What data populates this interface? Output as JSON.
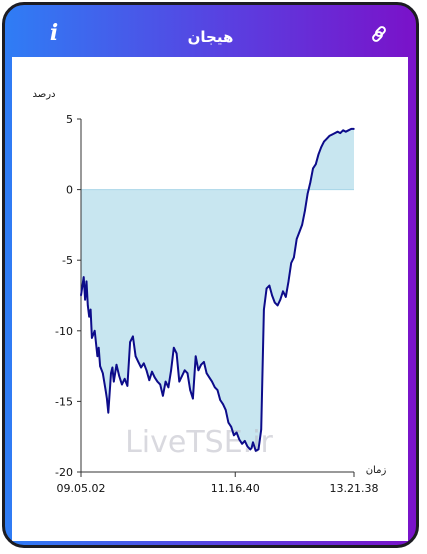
{
  "header": {
    "title": "هیجان",
    "info_icon": "i",
    "link_icon": "link-icon"
  },
  "colors": {
    "frame_gradient_start": "#2f7df5",
    "frame_gradient_end": "#7a12c9",
    "line": "#0d0c8a",
    "fill": "#c8e6f0",
    "zero_line": "#a9d6e8"
  },
  "watermark": "LiveTSE.ir",
  "chart_data": {
    "type": "area",
    "ylabel": "درصد",
    "xlabel": "زمان",
    "ylim": [
      -20,
      5
    ],
    "yticks": [
      5,
      0,
      -5,
      -10,
      -15,
      -20
    ],
    "xticks": [
      "09.05.02",
      "11.16.40",
      "13.21.38"
    ],
    "x_index_range": [
      0,
      100
    ],
    "xtick_positions": [
      0,
      56.5,
      100
    ],
    "grid": false,
    "series": [
      {
        "x": [
          0,
          1,
          1.5,
          2,
          2.5,
          3,
          3.5,
          4,
          5,
          6,
          6.5,
          7,
          8,
          9,
          9.5,
          10,
          11,
          11.5,
          12,
          13,
          14,
          15,
          16,
          17,
          18,
          19,
          20,
          21,
          22,
          23,
          24,
          25,
          26,
          27,
          28,
          29,
          30,
          31,
          32,
          33,
          34,
          35,
          36,
          37,
          38,
          39,
          40,
          41,
          42,
          43,
          44,
          45,
          46,
          47,
          48,
          49,
          50,
          51,
          52,
          53,
          54,
          55,
          56,
          57,
          58,
          59,
          60,
          61,
          62,
          62.5,
          63,
          64,
          65,
          66,
          67,
          68,
          69,
          70,
          71,
          72,
          73,
          74,
          75,
          76,
          77,
          78,
          79,
          80,
          81,
          82,
          83,
          84,
          85,
          86,
          87,
          88,
          89,
          90,
          91,
          92,
          93,
          94,
          95,
          96,
          97,
          98,
          99,
          100
        ],
        "values": [
          -7.5,
          -6.2,
          -7.8,
          -6.5,
          -8.2,
          -9.0,
          -8.5,
          -10.5,
          -10.0,
          -11.8,
          -11.2,
          -12.5,
          -13.0,
          -14.2,
          -14.8,
          -15.8,
          -13.0,
          -12.6,
          -13.6,
          -12.4,
          -13.2,
          -13.8,
          -13.4,
          -13.9,
          -10.8,
          -10.4,
          -11.8,
          -12.2,
          -12.6,
          -12.3,
          -12.8,
          -13.5,
          -12.9,
          -13.3,
          -13.6,
          -13.8,
          -14.6,
          -13.6,
          -14.0,
          -12.8,
          -11.2,
          -11.6,
          -13.6,
          -13.2,
          -12.8,
          -13.0,
          -14.2,
          -14.8,
          -11.8,
          -12.8,
          -12.4,
          -12.2,
          -13.0,
          -13.3,
          -13.6,
          -14.0,
          -14.2,
          -14.9,
          -15.2,
          -15.6,
          -16.5,
          -16.8,
          -17.4,
          -17.2,
          -17.7,
          -18.0,
          -17.8,
          -18.2,
          -18.4,
          -18.3,
          -17.9,
          -18.5,
          -18.4,
          -17.0,
          -8.5,
          -7.0,
          -6.8,
          -7.5,
          -8.0,
          -8.2,
          -7.8,
          -7.2,
          -7.6,
          -6.5,
          -5.2,
          -4.8,
          -3.5,
          -3.0,
          -2.5,
          -1.5,
          -0.3,
          0.5,
          1.5,
          1.8,
          2.5,
          3.0,
          3.4,
          3.6,
          3.8,
          3.9,
          4.0,
          4.1,
          4.0,
          4.2,
          4.1,
          4.2,
          4.3,
          4.3
        ]
      }
    ]
  }
}
